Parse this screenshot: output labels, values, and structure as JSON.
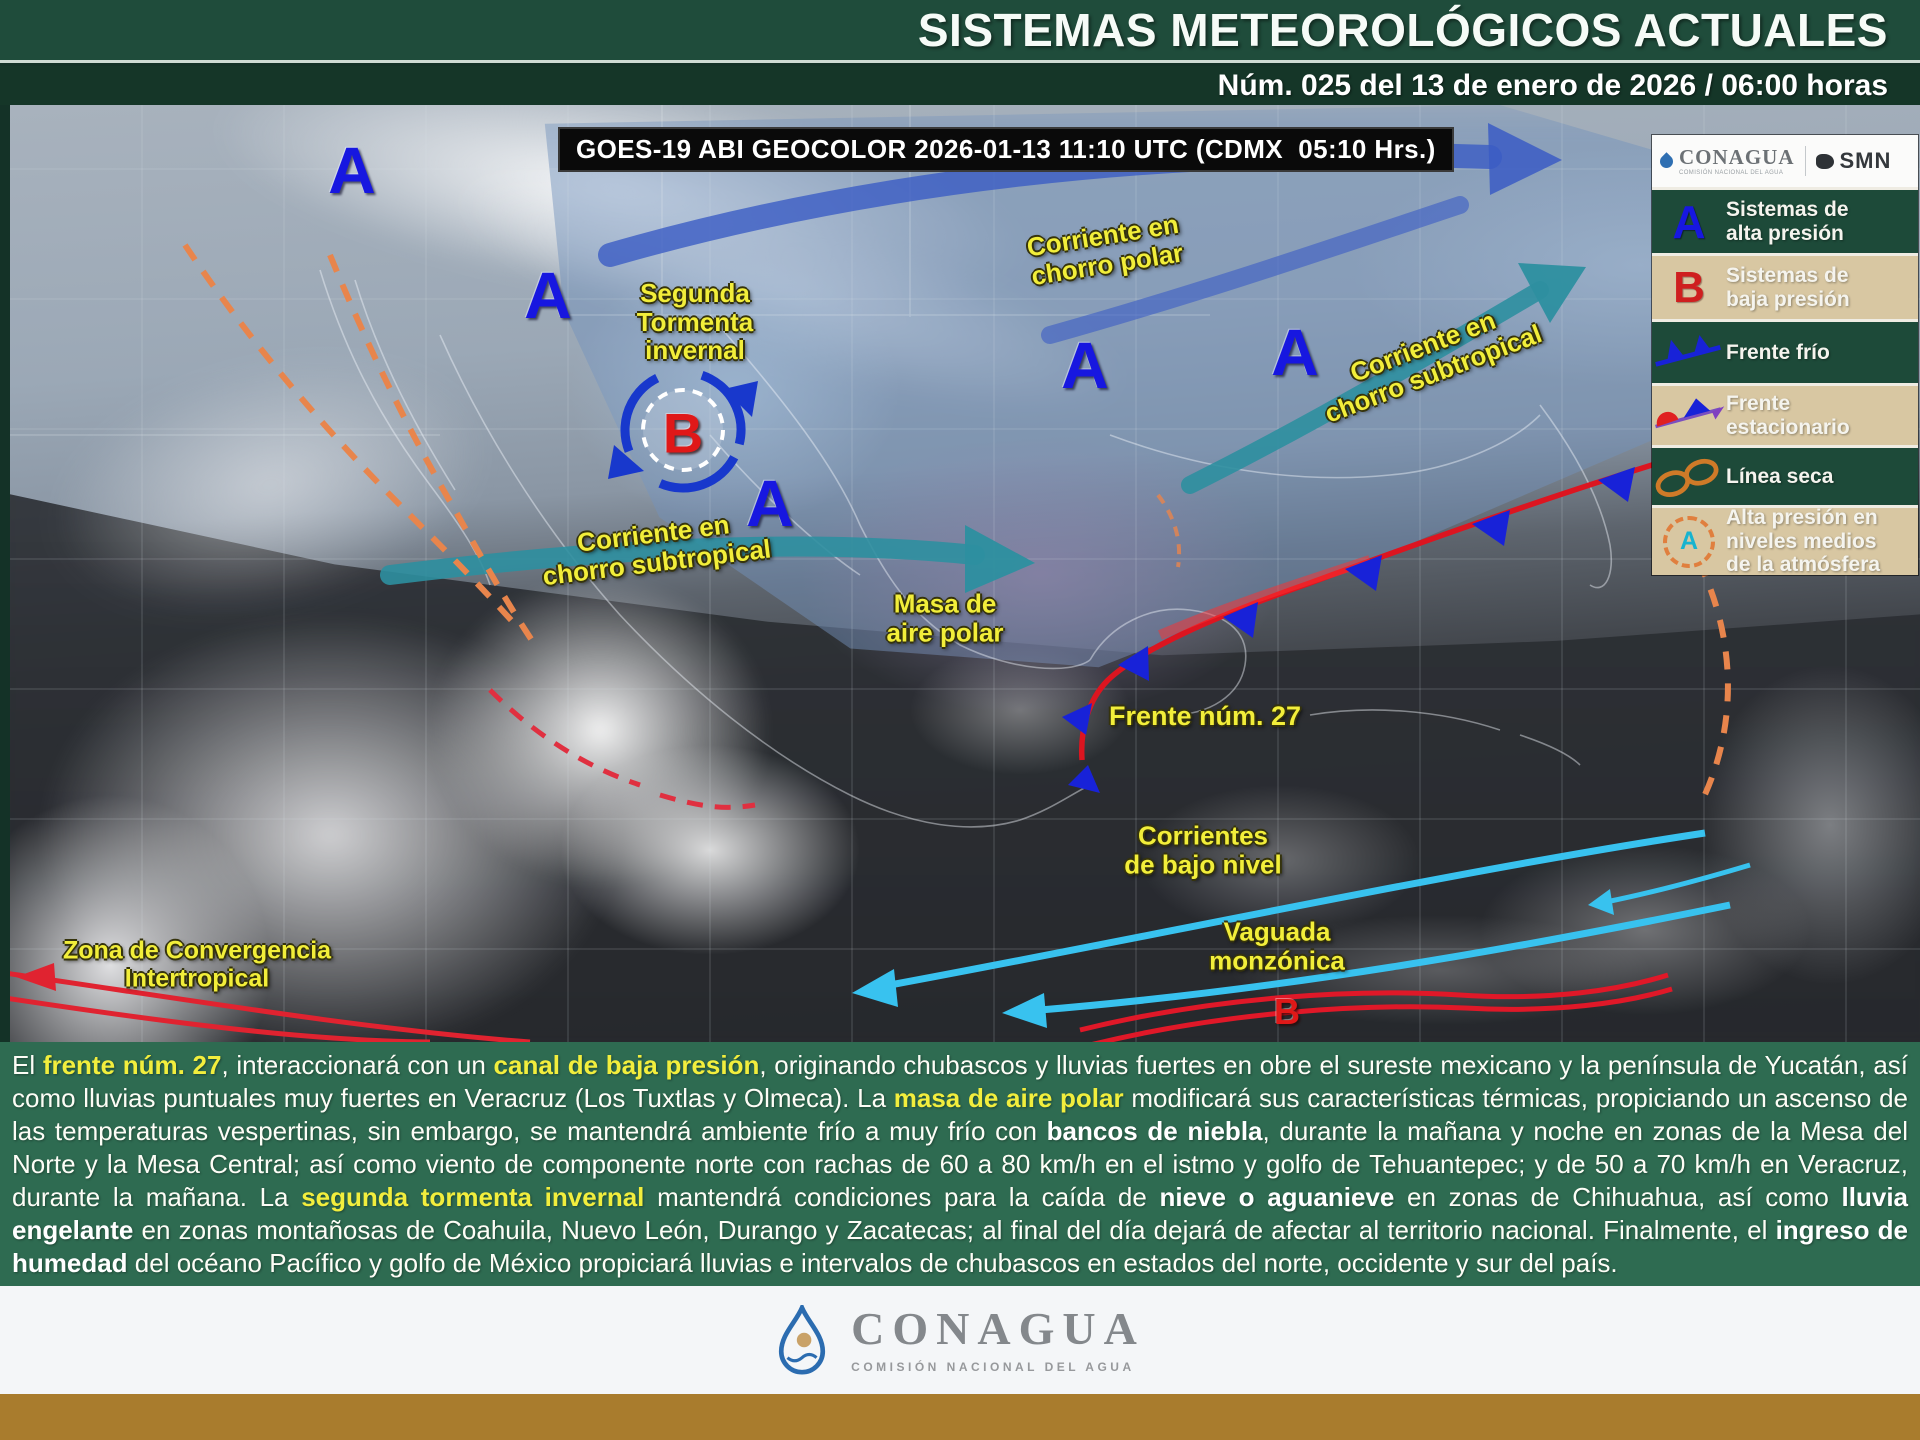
{
  "header": {
    "title": "SISTEMAS METEOROLÓGICOS ACTUALES",
    "subtitle": "Núm. 025 del 13 de enero de 2026 / 06:00 horas"
  },
  "map": {
    "satellite_caption": "GOES-19 ABI GEOCOLOR 2026-01-13 11:10 UTC (CDMX  05:10 Hrs.)",
    "symbols": {
      "high": "A",
      "low": "B"
    },
    "labels": {
      "segunda_tormenta": "Segunda\nTormenta\ninvernal",
      "chorro_polar": "Corriente en\nchorro polar",
      "chorro_subtropical_este": "Corriente en\nchorro subtropical",
      "chorro_subtropical_oeste": "Corriente en\nchorro subtropical",
      "masa_aire_polar": "Masa de\naire polar",
      "frente_27": "Frente núm. 27",
      "corrientes_bajo_nivel": "Corrientes\nde bajo nivel",
      "vaguada_monzonica": "Vaguada\nmonzónica",
      "zona_convergencia": "Zona  de Convergencia\nIntertropical"
    }
  },
  "legend": {
    "logos": {
      "conagua": "CONAGUA",
      "conagua_sub": "COMISIÓN NACIONAL DEL AGUA",
      "smn": "SMN"
    },
    "items": [
      {
        "icon": "high-pressure-letter",
        "label": "Sistemas de\nalta presión"
      },
      {
        "icon": "low-pressure-letter",
        "label": "Sistemas de\nbaja presión"
      },
      {
        "icon": "cold-front-icon",
        "label": "Frente frío"
      },
      {
        "icon": "stationary-front-icon",
        "label": "Frente\nestacionario"
      },
      {
        "icon": "dry-line-icon",
        "label": "Línea seca"
      },
      {
        "icon": "mid-level-high-icon",
        "label": "Alta presión en\nniveles medios\nde la atmósfera"
      }
    ]
  },
  "forecast": {
    "segments": [
      {
        "t": "El ",
        "s": "n"
      },
      {
        "t": "frente núm. 27",
        "s": "y"
      },
      {
        "t": ", interaccionará con un ",
        "s": "n"
      },
      {
        "t": "canal de baja presión",
        "s": "y"
      },
      {
        "t": ", originando chubascos y lluvias fuertes en obre el sureste mexicano y la península de Yucatán, así como lluvias puntuales muy fuertes en Veracruz (Los Tuxtlas y Olmeca). La ",
        "s": "n"
      },
      {
        "t": "masa de aire polar",
        "s": "y"
      },
      {
        "t": " modificará sus características térmicas, propiciando un ascenso de las temperaturas vespertinas, sin embargo, se mantendrá ambiente frío a muy frío con ",
        "s": "n"
      },
      {
        "t": "bancos de niebla",
        "s": "b"
      },
      {
        "t": ", durante la mañana y noche en zonas de la Mesa del Norte y la Mesa Central; así como viento de componente norte con rachas de 60 a 80 km/h en el istmo y golfo de Tehuantepec; y de 50 a 70 km/h en Veracruz, durante la mañana. La ",
        "s": "n"
      },
      {
        "t": "segunda tormenta invernal",
        "s": "y"
      },
      {
        "t": " mantendrá condiciones para la caída de ",
        "s": "n"
      },
      {
        "t": "nieve o aguanieve",
        "s": "b"
      },
      {
        "t": " en zonas de Chihuahua, así como ",
        "s": "n"
      },
      {
        "t": "lluvia engelante",
        "s": "b"
      },
      {
        "t": " en zonas montañosas de Coahuila, Nuevo León, Durango y Zacatecas; al final del día dejará de afectar al territorio nacional. Finalmente, el ",
        "s": "n"
      },
      {
        "t": "ingreso de humedad",
        "s": "b"
      },
      {
        "t": " del océano Pacífico y golfo de México propiciará lluvias e intervalos de chubascos en estados del norte, occidente y sur del país.",
        "s": "n"
      }
    ]
  },
  "footer": {
    "brand": "CONAGUA",
    "brand_sub": "COMISIÓN NACIONAL DEL AGUA"
  },
  "colors": {
    "header_green": "#1f4c3b",
    "subheader_green": "#153628",
    "forecast_green": "#2e6b51",
    "footer_bar_brown": "#a97c2d",
    "legend_green": "#1d4a39",
    "legend_tan": "#d8c7a2",
    "high_pressure_blue": "#1717e0",
    "low_pressure_red": "#e01818",
    "map_label_yellow": "#f2ee3a",
    "cold_front_blue": "#1822d8",
    "front_line_red": "#dc1520",
    "jet_polar_blue": "#3b5cc4",
    "jet_subtropical_teal": "#2d8fa0",
    "low_level_current_cyan": "#38c2ef",
    "dry_line_orange": "#e8854c"
  }
}
